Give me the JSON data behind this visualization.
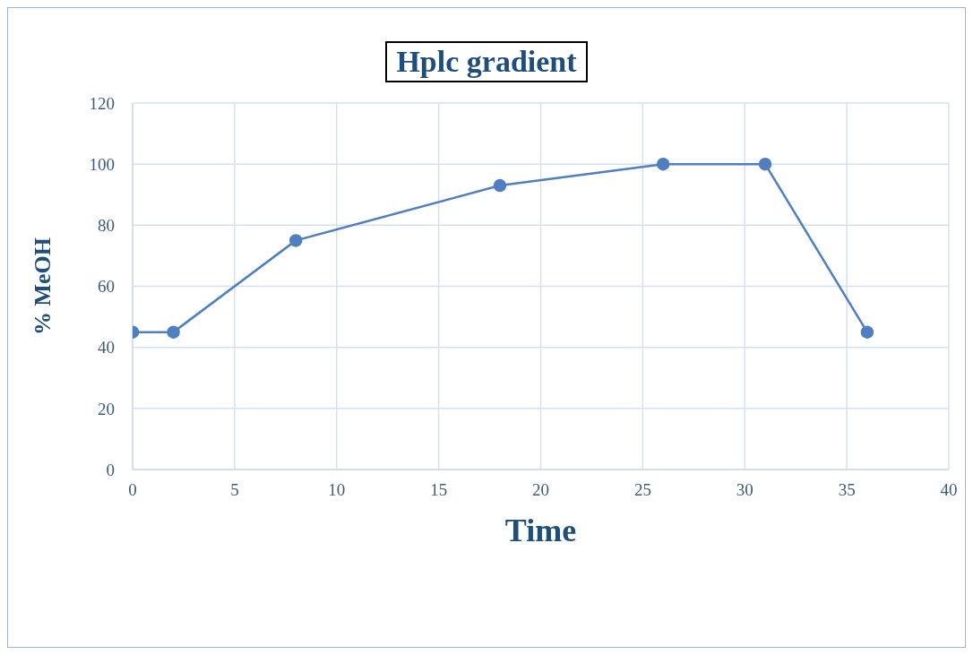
{
  "chart_data": {
    "type": "line",
    "title": "Hplc gradient",
    "xlabel": "Time",
    "ylabel": "% MeOH",
    "x": [
      0,
      2,
      8,
      18,
      26,
      31,
      36
    ],
    "series": [
      {
        "color": "#4f7fc0",
        "values": [
          45,
          45,
          75,
          93,
          100,
          100,
          45
        ]
      }
    ],
    "xlim": [
      0,
      40
    ],
    "xticks": [
      0,
      5,
      10,
      15,
      20,
      25,
      30,
      35,
      40
    ],
    "ylim": [
      0,
      120
    ],
    "yticks": [
      0,
      20,
      40,
      60,
      80,
      100,
      120
    ],
    "grid": true,
    "marker": "circle",
    "line_style": "solid",
    "legend": false
  }
}
